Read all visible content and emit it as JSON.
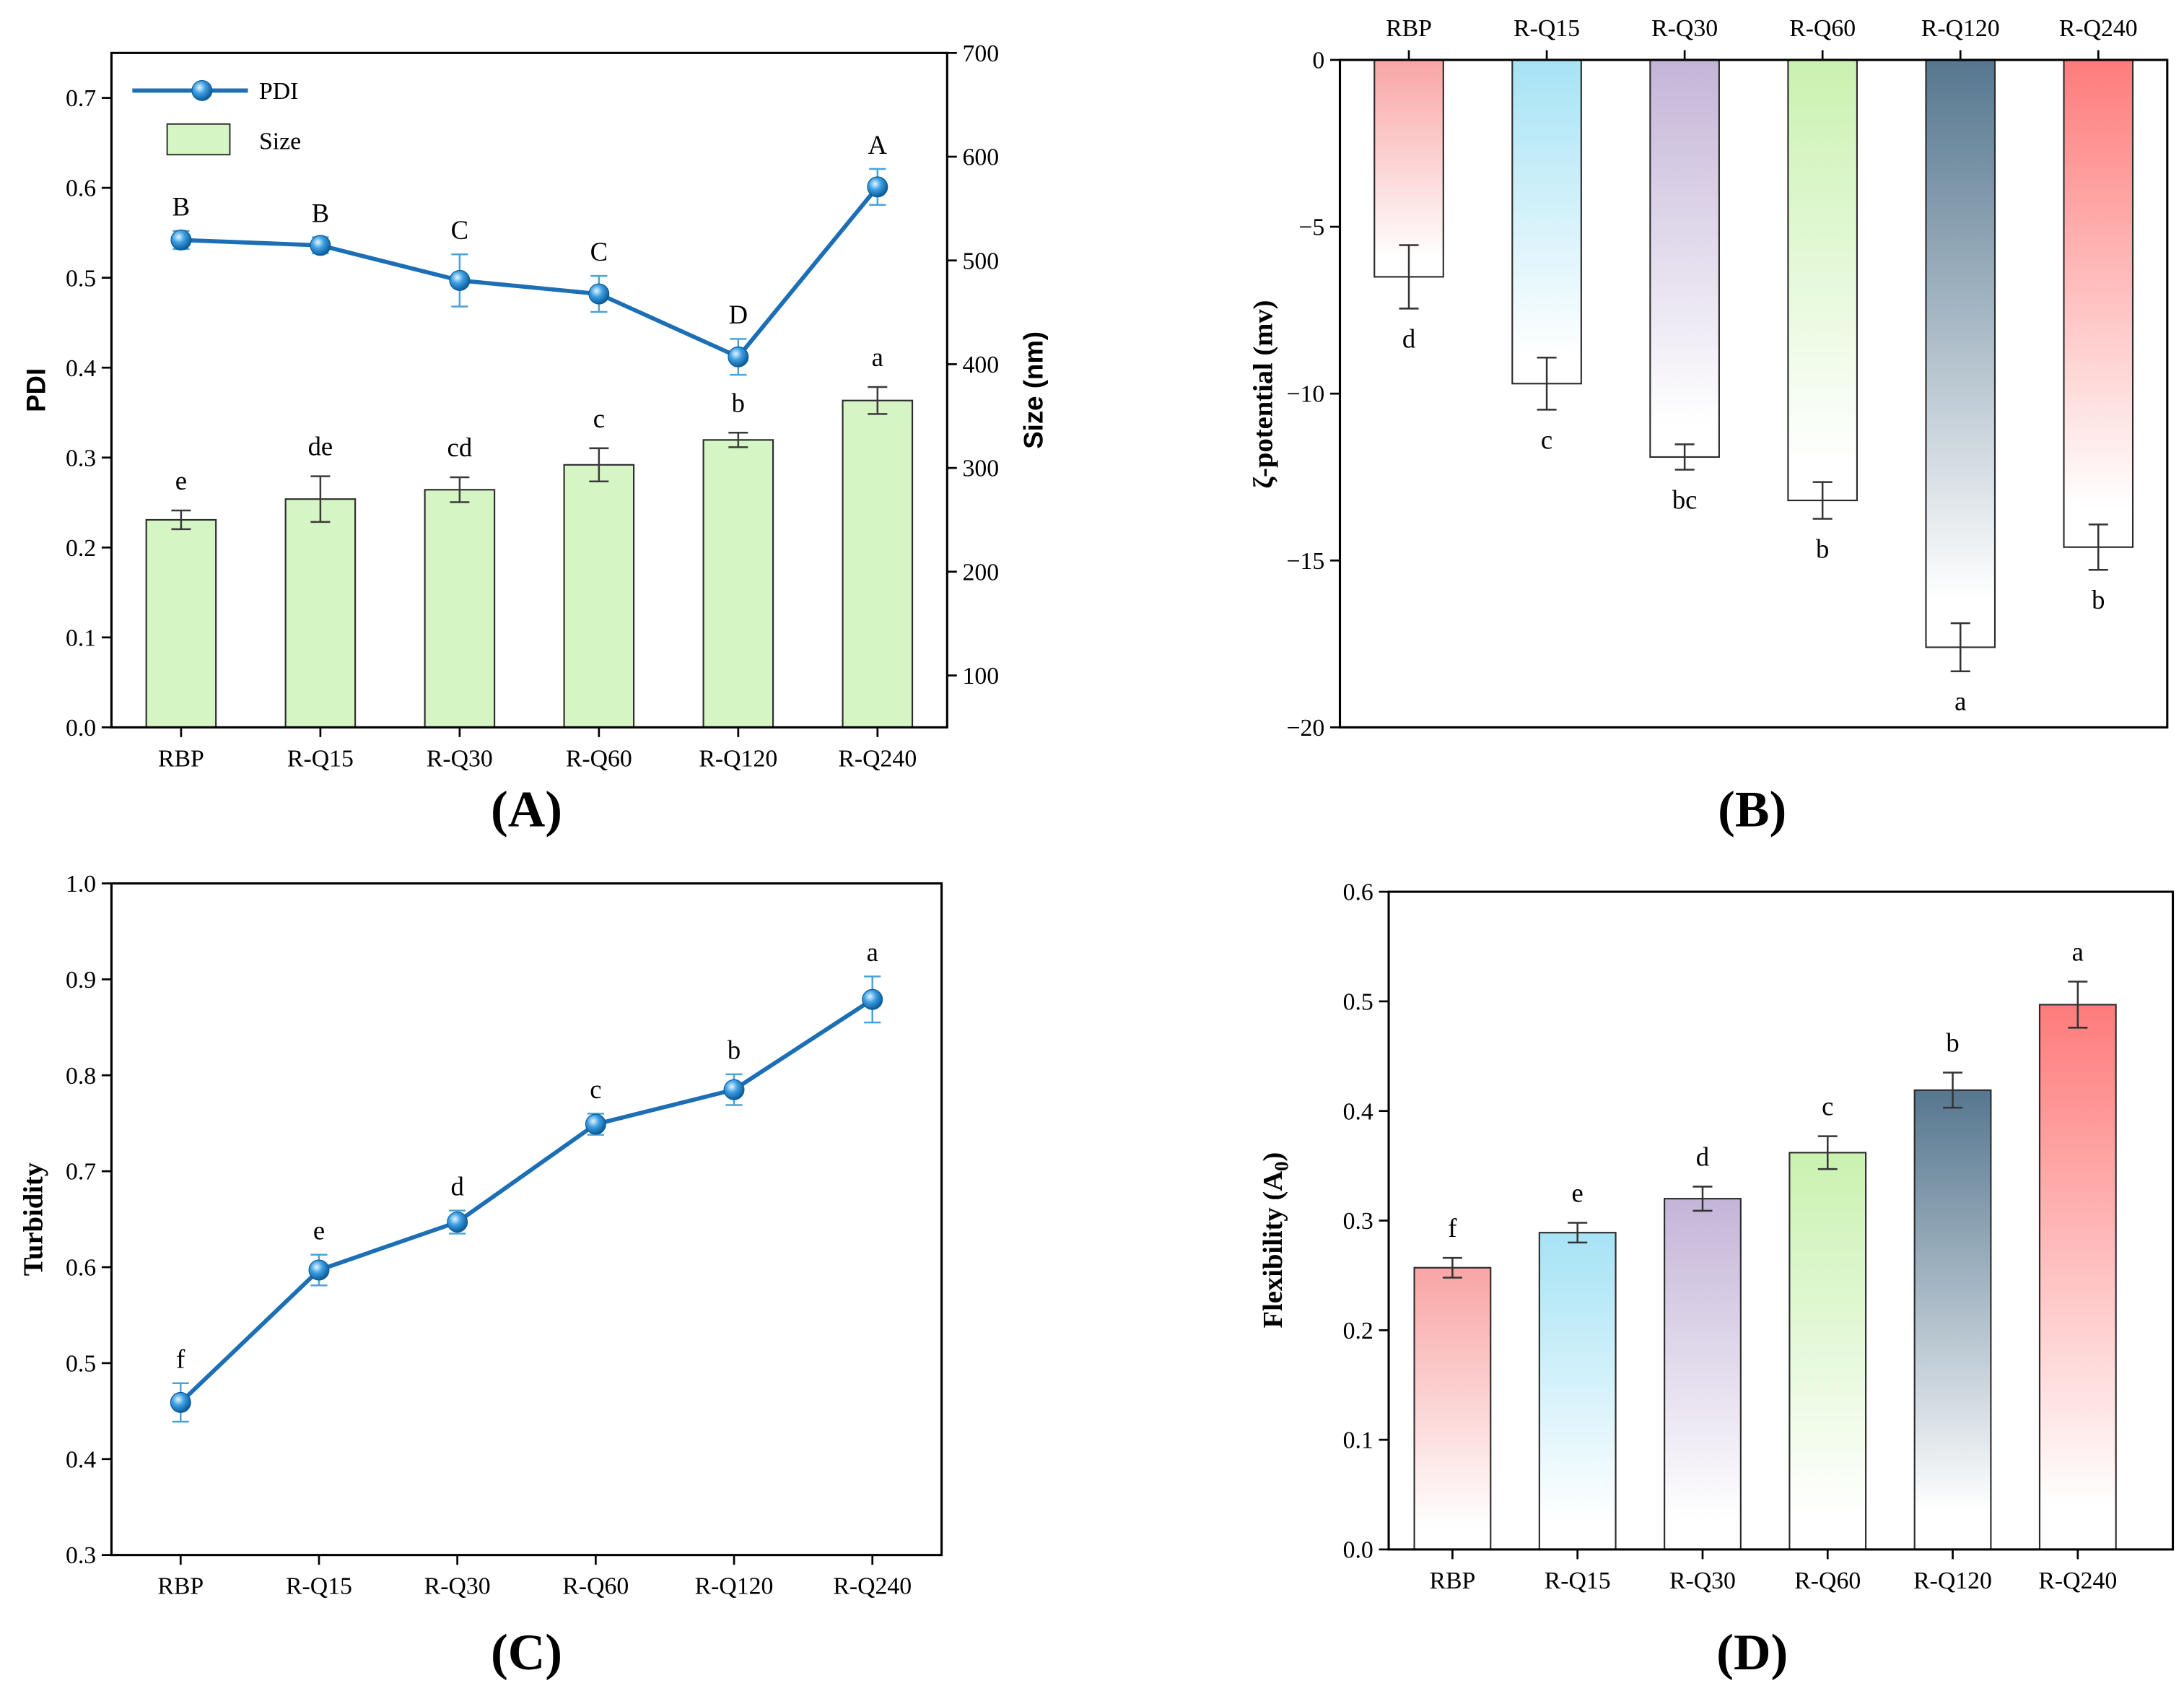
{
  "chart_data": [
    {
      "type": "bar",
      "panel_label": "(A)",
      "categories": [
        "RBP",
        "R-Q15",
        "R-Q30",
        "R-Q60",
        "R-Q120",
        "R-Q240"
      ],
      "ylabel": "PDI",
      "ylim": [
        0,
        0.75
      ],
      "yticks": [
        "0.0",
        "0.1",
        "0.2",
        "0.3",
        "0.4",
        "0.5",
        "0.6",
        "0.7"
      ],
      "ylabel_right": "Size (nm)",
      "ylim_right": [
        50,
        700
      ],
      "yticks_right": [
        "100",
        "200",
        "300",
        "400",
        "500",
        "600",
        "700"
      ],
      "legend_position": "top-left",
      "series": [
        {
          "name": "PDI",
          "type": "line",
          "axis": "left",
          "values": [
            0.542,
            0.536,
            0.497,
            0.482,
            0.412,
            0.601
          ],
          "errors": [
            0.01,
            0.009,
            0.029,
            0.02,
            0.02,
            0.02
          ],
          "letters": [
            "B",
            "B",
            "C",
            "C",
            "D",
            "A"
          ],
          "color": "#1c6fb5",
          "error_color": "#4aa3d6"
        },
        {
          "name": "Size",
          "type": "bar",
          "axis": "right",
          "values": [
            250,
            270,
            279,
            303,
            327,
            365
          ],
          "errors": [
            9,
            22,
            12,
            16,
            7,
            13
          ],
          "letters": [
            "e",
            "de",
            "cd",
            "c",
            "b",
            "a"
          ],
          "color": "#d5f5c4",
          "error_color": "#3a3a3a"
        }
      ]
    },
    {
      "type": "bar",
      "panel_label": "(B)",
      "categories": [
        "RBP",
        "R-Q15",
        "R-Q30",
        "R-Q60",
        "R-Q120",
        "R-Q240"
      ],
      "x_axis": "top",
      "ylabel": "ζ-potential (mv)",
      "ylim": [
        -20,
        0
      ],
      "yticks": [
        "0",
        "−5",
        "−10",
        "−15",
        "−20"
      ],
      "values": [
        -6.5,
        -9.7,
        -11.9,
        -13.2,
        -17.6,
        -14.6
      ],
      "errors": [
        0.95,
        0.78,
        0.38,
        0.55,
        0.72,
        0.68
      ],
      "letters": [
        "d",
        "c",
        "bc",
        "b",
        "a",
        "b"
      ],
      "bar_colors": [
        "#f9a5a5",
        "#a6e3f5",
        "#c4b5d8",
        "#c9f2b0",
        "#56778f",
        "#ff7b7b"
      ],
      "error_color": "#333333"
    },
    {
      "type": "line",
      "panel_label": "(C)",
      "categories": [
        "RBP",
        "R-Q15",
        "R-Q30",
        "R-Q60",
        "R-Q120",
        "R-Q240"
      ],
      "ylabel": "Turbidity",
      "ylim": [
        0.3,
        1.0
      ],
      "yticks": [
        "0.3",
        "0.4",
        "0.5",
        "0.6",
        "0.7",
        "0.8",
        "0.9",
        "1.0"
      ],
      "values": [
        0.459,
        0.597,
        0.647,
        0.749,
        0.785,
        0.879
      ],
      "errors": [
        0.02,
        0.016,
        0.012,
        0.011,
        0.016,
        0.024
      ],
      "letters": [
        "f",
        "e",
        "d",
        "c",
        "b",
        "a"
      ],
      "color": "#1c6fb5",
      "error_color": "#4aa3d6"
    },
    {
      "type": "bar",
      "panel_label": "(D)",
      "categories": [
        "RBP",
        "R-Q15",
        "R-Q30",
        "R-Q60",
        "R-Q120",
        "R-Q240"
      ],
      "ylabel": "Flexibility (A",
      "ylabel_subscript": "0",
      "ylabel_tail": ")",
      "ylim": [
        0,
        0.6
      ],
      "yticks": [
        "0.0",
        "0.1",
        "0.2",
        "0.3",
        "0.4",
        "0.5",
        "0.6"
      ],
      "values": [
        0.257,
        0.289,
        0.32,
        0.362,
        0.419,
        0.497
      ],
      "errors": [
        0.009,
        0.009,
        0.011,
        0.015,
        0.016,
        0.021
      ],
      "letters": [
        "f",
        "e",
        "d",
        "c",
        "b",
        "a"
      ],
      "bar_colors": [
        "#f9a5a5",
        "#a6e3f5",
        "#c4b5d8",
        "#c9f2b0",
        "#56778f",
        "#ff7b7b"
      ],
      "error_color": "#333333"
    }
  ]
}
